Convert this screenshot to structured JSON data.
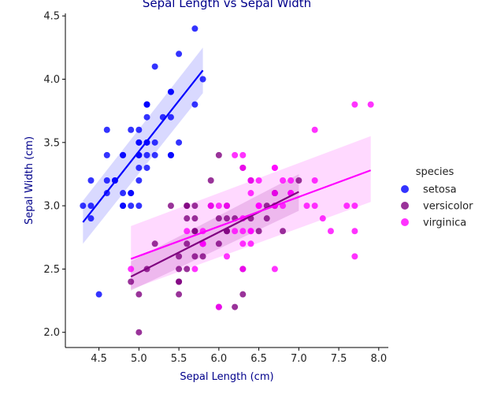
{
  "colors": {
    "title": "#00008b",
    "axis_title": "#00008b",
    "axis": "#000000"
  },
  "chart_data": {
    "type": "scatter",
    "title": "Sepal Length vs Sepal Width",
    "xlabel": "Sepal Length (cm)",
    "ylabel": "Sepal Width (cm)",
    "xlim": [
      4.08,
      8.12
    ],
    "ylim": [
      1.88,
      4.52
    ],
    "x_ticks": [
      4.5,
      5.0,
      5.5,
      6.0,
      6.5,
      7.0,
      7.5,
      8.0
    ],
    "x_tick_labels": [
      "4.5",
      "5.0",
      "5.5",
      "6.0",
      "6.5",
      "7.0",
      "7.5",
      "8.0"
    ],
    "y_ticks": [
      2.0,
      2.5,
      3.0,
      3.5,
      4.0,
      4.5
    ],
    "y_tick_labels": [
      "2.0",
      "2.5",
      "3.0",
      "3.5",
      "4.0",
      "4.5"
    ],
    "grid": false,
    "legend": {
      "title": "species",
      "placement": "right"
    },
    "series": [
      {
        "name": "setosa",
        "color": "#0000ff",
        "points": [
          [
            5.1,
            3.5
          ],
          [
            4.9,
            3.0
          ],
          [
            4.7,
            3.2
          ],
          [
            4.6,
            3.1
          ],
          [
            5.0,
            3.6
          ],
          [
            5.4,
            3.9
          ],
          [
            4.6,
            3.4
          ],
          [
            5.0,
            3.4
          ],
          [
            4.4,
            2.9
          ],
          [
            4.9,
            3.1
          ],
          [
            5.4,
            3.7
          ],
          [
            4.8,
            3.4
          ],
          [
            4.8,
            3.0
          ],
          [
            4.3,
            3.0
          ],
          [
            5.8,
            4.0
          ],
          [
            5.7,
            4.4
          ],
          [
            5.4,
            3.9
          ],
          [
            5.1,
            3.5
          ],
          [
            5.7,
            3.8
          ],
          [
            5.1,
            3.8
          ],
          [
            5.4,
            3.4
          ],
          [
            5.1,
            3.7
          ],
          [
            4.6,
            3.6
          ],
          [
            5.1,
            3.3
          ],
          [
            4.8,
            3.4
          ],
          [
            5.0,
            3.0
          ],
          [
            5.0,
            3.4
          ],
          [
            5.2,
            3.5
          ],
          [
            5.2,
            3.4
          ],
          [
            4.7,
            3.2
          ],
          [
            4.8,
            3.1
          ],
          [
            5.4,
            3.4
          ],
          [
            5.2,
            4.1
          ],
          [
            5.5,
            4.2
          ],
          [
            4.9,
            3.1
          ],
          [
            5.0,
            3.2
          ],
          [
            5.5,
            3.5
          ],
          [
            4.9,
            3.6
          ],
          [
            4.4,
            3.0
          ],
          [
            5.1,
            3.4
          ],
          [
            5.0,
            3.5
          ],
          [
            4.5,
            2.3
          ],
          [
            4.4,
            3.2
          ],
          [
            5.0,
            3.5
          ],
          [
            5.1,
            3.8
          ],
          [
            4.8,
            3.0
          ],
          [
            5.1,
            3.8
          ],
          [
            4.6,
            3.2
          ],
          [
            5.3,
            3.7
          ],
          [
            5.0,
            3.3
          ]
        ],
        "fit": {
          "x": [
            4.3,
            5.8
          ],
          "y": [
            2.87,
            4.07
          ],
          "ci_upper": [
            3.04,
            4.25
          ],
          "ci_lower": [
            2.7,
            3.89
          ]
        }
      },
      {
        "name": "versicolor",
        "color": "#800080",
        "points": [
          [
            7.0,
            3.2
          ],
          [
            6.4,
            3.2
          ],
          [
            6.9,
            3.1
          ],
          [
            5.5,
            2.3
          ],
          [
            6.5,
            2.8
          ],
          [
            5.7,
            2.8
          ],
          [
            6.3,
            3.3
          ],
          [
            4.9,
            2.4
          ],
          [
            6.6,
            2.9
          ],
          [
            5.2,
            2.7
          ],
          [
            5.0,
            2.0
          ],
          [
            5.9,
            3.0
          ],
          [
            6.0,
            2.2
          ],
          [
            6.1,
            2.9
          ],
          [
            5.6,
            2.9
          ],
          [
            6.7,
            3.1
          ],
          [
            5.6,
            3.0
          ],
          [
            5.8,
            2.7
          ],
          [
            6.2,
            2.2
          ],
          [
            5.6,
            2.5
          ],
          [
            5.9,
            3.2
          ],
          [
            6.1,
            2.8
          ],
          [
            6.3,
            2.5
          ],
          [
            6.1,
            2.8
          ],
          [
            6.4,
            2.9
          ],
          [
            6.6,
            3.0
          ],
          [
            6.8,
            2.8
          ],
          [
            6.7,
            3.0
          ],
          [
            6.0,
            2.9
          ],
          [
            5.7,
            2.6
          ],
          [
            5.5,
            2.4
          ],
          [
            5.5,
            2.4
          ],
          [
            5.8,
            2.7
          ],
          [
            6.0,
            2.7
          ],
          [
            5.4,
            3.0
          ],
          [
            6.0,
            3.4
          ],
          [
            6.7,
            3.1
          ],
          [
            6.3,
            2.3
          ],
          [
            5.6,
            3.0
          ],
          [
            5.5,
            2.5
          ],
          [
            5.5,
            2.6
          ],
          [
            6.1,
            3.0
          ],
          [
            5.8,
            2.6
          ],
          [
            5.0,
            2.3
          ],
          [
            5.6,
            2.7
          ],
          [
            5.7,
            3.0
          ],
          [
            5.7,
            2.9
          ],
          [
            6.2,
            2.9
          ],
          [
            5.1,
            2.5
          ],
          [
            5.7,
            2.8
          ]
        ],
        "fit": {
          "x": [
            4.9,
            7.0
          ],
          "y": [
            2.44,
            3.11
          ],
          "ci_upper": [
            2.56,
            3.25
          ],
          "ci_lower": [
            2.33,
            2.96
          ]
        }
      },
      {
        "name": "virginica",
        "color": "#ff00ff",
        "points": [
          [
            6.3,
            3.3
          ],
          [
            5.8,
            2.7
          ],
          [
            7.1,
            3.0
          ],
          [
            6.3,
            2.9
          ],
          [
            6.5,
            3.0
          ],
          [
            7.6,
            3.0
          ],
          [
            4.9,
            2.5
          ],
          [
            7.3,
            2.9
          ],
          [
            6.7,
            2.5
          ],
          [
            7.2,
            3.6
          ],
          [
            6.5,
            3.2
          ],
          [
            6.4,
            2.7
          ],
          [
            6.8,
            3.0
          ],
          [
            5.7,
            2.5
          ],
          [
            5.8,
            2.8
          ],
          [
            6.4,
            3.2
          ],
          [
            6.5,
            3.0
          ],
          [
            7.7,
            3.8
          ],
          [
            7.7,
            2.6
          ],
          [
            6.0,
            2.2
          ],
          [
            6.9,
            3.2
          ],
          [
            5.6,
            2.8
          ],
          [
            7.7,
            2.8
          ],
          [
            6.3,
            2.7
          ],
          [
            6.7,
            3.3
          ],
          [
            7.2,
            3.2
          ],
          [
            6.2,
            2.8
          ],
          [
            6.1,
            3.0
          ],
          [
            6.4,
            2.8
          ],
          [
            7.2,
            3.0
          ],
          [
            7.4,
            2.8
          ],
          [
            7.9,
            3.8
          ],
          [
            6.4,
            2.8
          ],
          [
            6.3,
            2.8
          ],
          [
            6.1,
            2.6
          ],
          [
            7.7,
            3.0
          ],
          [
            6.3,
            3.4
          ],
          [
            6.4,
            3.1
          ],
          [
            6.0,
            3.0
          ],
          [
            6.9,
            3.1
          ],
          [
            6.7,
            3.1
          ],
          [
            6.9,
            3.1
          ],
          [
            5.8,
            2.7
          ],
          [
            6.8,
            3.2
          ],
          [
            6.7,
            3.3
          ],
          [
            6.7,
            3.0
          ],
          [
            6.3,
            2.5
          ],
          [
            6.5,
            3.0
          ],
          [
            6.2,
            3.4
          ],
          [
            5.9,
            3.0
          ]
        ],
        "fit": {
          "x": [
            4.9,
            7.9
          ],
          "y": [
            2.58,
            3.28
          ],
          "ci_upper": [
            2.84,
            3.55
          ],
          "ci_lower": [
            2.34,
            3.03
          ]
        }
      }
    ]
  }
}
